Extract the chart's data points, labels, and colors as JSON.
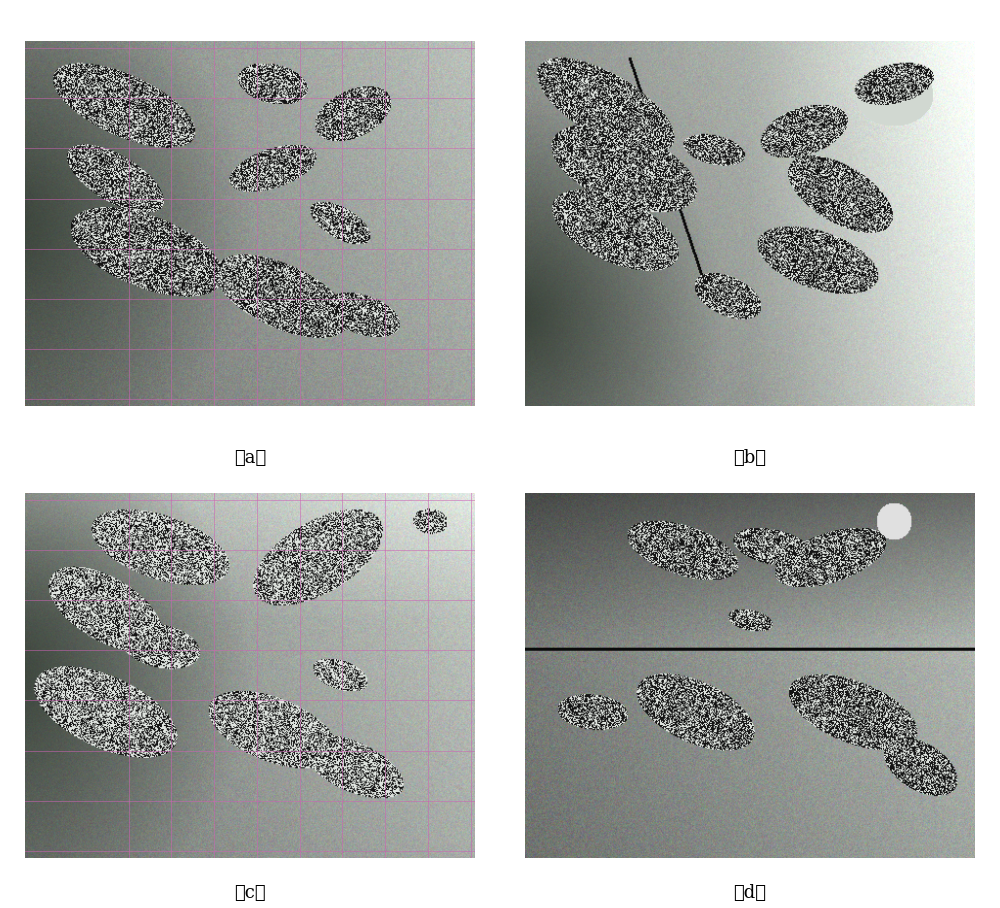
{
  "figure_width": 10.0,
  "figure_height": 9.08,
  "background_color": "#ffffff",
  "labels": [
    "（a）",
    "（b）",
    "（c）",
    "（d）"
  ],
  "label_fontsize": 13,
  "label_color": "#000000",
  "grid_color_r": 204,
  "grid_color_g": 100,
  "grid_color_b": 180,
  "grid_alpha": 0.55,
  "grid_linewidth": 0.7,
  "has_grid_panels": [
    true,
    false,
    true,
    false
  ],
  "panel_bg_r": 180,
  "panel_bg_g": 175,
  "panel_bg_b": 180
}
